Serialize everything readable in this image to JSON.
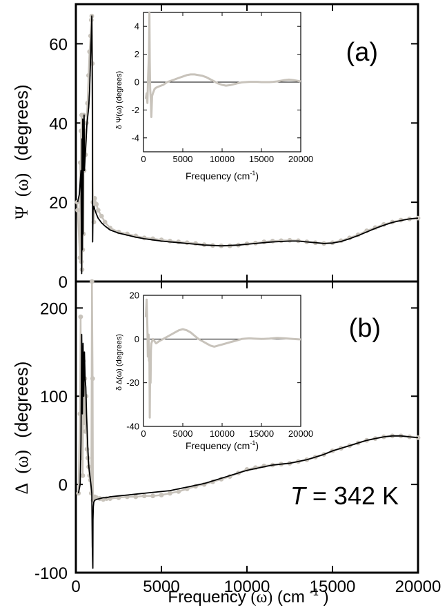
{
  "chart_data": [
    {
      "id": "a",
      "type": "scatter",
      "panel_label": "(a)",
      "ylabel_symbol": "Ψ",
      "ylabel_arg": "(ω)",
      "ylabel_unit": "(degrees)",
      "xlim": [
        0,
        20000
      ],
      "ylim": [
        0,
        70
      ],
      "yticks": [
        0,
        20,
        40,
        60
      ],
      "series": [
        {
          "kind": "measured",
          "color": "#c8c3bb",
          "x": [
            80,
            100,
            240,
            260,
            280,
            300,
            320,
            340,
            360,
            380,
            400,
            420,
            440,
            460,
            480,
            500,
            560,
            620,
            680,
            740,
            800,
            860,
            900,
            930,
            960,
            1000,
            1050,
            1100,
            1200,
            1300,
            1500,
            1700,
            2000,
            2500,
            3000,
            3500,
            4000,
            4500,
            5000,
            5500,
            6000,
            6500,
            7000,
            7500,
            8000,
            8500,
            9000,
            9500,
            10000,
            10500,
            11000,
            11500,
            12000,
            12500,
            13000,
            13500,
            14000,
            14500,
            15000,
            15500,
            16000,
            16500,
            17000,
            17500,
            18000,
            18500,
            19000,
            19500,
            20000
          ],
          "y": [
            20,
            18,
            6,
            30,
            10,
            38,
            5,
            42,
            3,
            40,
            8,
            35,
            12,
            42,
            28,
            38,
            32,
            40,
            45,
            52,
            58,
            62,
            66,
            67,
            55,
            20,
            15,
            21,
            19.5,
            18,
            16.5,
            15,
            13.5,
            12.5,
            12,
            11.5,
            11,
            10.8,
            10.5,
            10.2,
            10,
            9.8,
            9.6,
            9.3,
            9.1,
            9.0,
            9.0,
            9.2,
            9.5,
            9.7,
            10.0,
            10.2,
            10.3,
            10.4,
            10.3,
            10.0,
            9.8,
            9.6,
            9.8,
            10.3,
            11.0,
            11.8,
            12.8,
            13.6,
            14.4,
            15.0,
            15.5,
            15.8,
            16.0
          ]
        },
        {
          "kind": "fit",
          "color": "#000000",
          "x": [
            100,
            200,
            300,
            340,
            360,
            380,
            400,
            420,
            440,
            460,
            480,
            500,
            550,
            600,
            650,
            700,
            750,
            800,
            850,
            900,
            930,
            960,
            980,
            1000,
            1050,
            1100,
            1200,
            1300,
            1500,
            1700,
            2000,
            2500,
            3000,
            3500,
            4000,
            4500,
            5000,
            5500,
            6000,
            6500,
            7000,
            7500,
            8000,
            8500,
            9000,
            9500,
            10000,
            10500,
            11000,
            11500,
            12000,
            12500,
            13000,
            13500,
            14000,
            14500,
            15000,
            15500,
            16000,
            16500,
            17000,
            17500,
            18000,
            18500,
            19000,
            19500,
            20000
          ],
          "y": [
            20,
            22,
            28,
            2,
            36,
            8,
            41,
            12,
            38,
            30,
            42,
            28,
            32,
            36,
            40,
            42,
            44,
            48,
            55,
            62,
            67,
            50,
            10,
            18,
            19,
            18.2,
            17,
            16,
            14.8,
            14,
            13,
            12.2,
            11.7,
            11.2,
            10.8,
            10.5,
            10.2,
            10.0,
            9.8,
            9.6,
            9.4,
            9.2,
            9.1,
            9.0,
            9.1,
            9.2,
            9.4,
            9.6,
            9.8,
            10.0,
            10.1,
            10.2,
            10.2,
            10.0,
            9.8,
            9.6,
            9.7,
            10.1,
            10.8,
            11.6,
            12.5,
            13.4,
            14.2,
            14.9,
            15.4,
            15.8,
            16.0
          ]
        }
      ],
      "inset": {
        "ylabel": "δ Ψ(ω)  (degrees)",
        "xlabel": "Frequency  (cm",
        "xlabel_sup": "-1",
        "xlabel_end": ")",
        "xlim": [
          0,
          20000
        ],
        "ylim": [
          -5,
          5
        ],
        "xticks": [
          0,
          5000,
          10000,
          15000,
          20000
        ],
        "yticks": [
          -4,
          -2,
          0,
          2,
          4
        ],
        "series": [
          {
            "color": "#c8c3bb",
            "x": [
              300,
              400,
              500,
              600,
              700,
              750,
              800,
              850,
              900,
              950,
              1000,
              1100,
              1200,
              1400,
              1600,
              2000,
              2500,
              3000,
              3500,
              4000,
              4500,
              5000,
              5500,
              6000,
              6500,
              7000,
              7500,
              8000,
              8500,
              9000,
              9500,
              10000,
              10500,
              11000,
              11500,
              12000,
              12500,
              13000,
              13500,
              14000,
              14500,
              15000,
              15500,
              16000,
              16500,
              17000,
              17500,
              18000,
              18500,
              19000,
              19500,
              20000
            ],
            "y": [
              -1.2,
              -0.8,
              -1.5,
              0.5,
              2.0,
              5.0,
              1.5,
              -0.5,
              -1.0,
              -1.5,
              -2.5,
              -1.0,
              -0.8,
              -0.5,
              -0.4,
              -0.3,
              -0.2,
              0.0,
              0.1,
              0.2,
              0.3,
              0.4,
              0.5,
              0.55,
              0.55,
              0.5,
              0.45,
              0.35,
              0.2,
              0.05,
              -0.1,
              -0.2,
              -0.25,
              -0.22,
              -0.15,
              -0.08,
              -0.02,
              0.0,
              0.02,
              0.02,
              0.02,
              0.0,
              0.0,
              0.0,
              0.02,
              0.05,
              0.1,
              0.15,
              0.18,
              0.15,
              0.1,
              0.05
            ]
          }
        ]
      }
    },
    {
      "id": "b",
      "type": "scatter",
      "panel_label": "(b)",
      "ylabel_symbol": "Δ",
      "ylabel_arg": "(ω)",
      "ylabel_unit": "(degrees)",
      "annotation_T": "T",
      "annotation_rest": " = 342 K",
      "xlim": [
        0,
        20000
      ],
      "ylim": [
        -100,
        230
      ],
      "yticks": [
        -100,
        0,
        100,
        200
      ],
      "xticks": [
        0,
        5000,
        10000,
        15000,
        20000
      ],
      "xlabel": "Frequency ",
      "xlabel_arg": "(ω)",
      "xlabel_unit": "  (cm",
      "xlabel_sup": "-1",
      "xlabel_end": ")",
      "series": [
        {
          "kind": "measured",
          "color": "#c8c3bb",
          "x": [
            150,
            240,
            280,
            320,
            360,
            400,
            440,
            480,
            520,
            560,
            600,
            650,
            700,
            750,
            800,
            850,
            900,
            940,
            980,
            1000,
            1050,
            1100,
            1200,
            1400,
            1600,
            1800,
            2000,
            2500,
            3000,
            3500,
            4000,
            4500,
            5000,
            5500,
            6000,
            6500,
            7000,
            7500,
            8000,
            8500,
            9000,
            9500,
            10000,
            10500,
            11000,
            11500,
            12000,
            12500,
            13000,
            13500,
            14000,
            14500,
            15000,
            15500,
            16000,
            16500,
            17000,
            17500,
            18000,
            18500,
            19000,
            19500,
            20000
          ],
          "y": [
            -10,
            80,
            190,
            30,
            150,
            10,
            140,
            70,
            120,
            60,
            100,
            40,
            30,
            20,
            10,
            5,
            -10,
            230,
            120,
            -18,
            -15,
            -14,
            -15,
            -16,
            -17,
            -16,
            -16,
            -15,
            -14,
            -14,
            -13,
            -13,
            -12,
            -10,
            -8,
            -5,
            -2,
            0,
            3,
            6,
            9,
            13,
            17,
            19,
            21,
            22,
            23,
            24,
            26,
            28,
            31,
            34,
            38,
            41,
            44,
            47,
            50,
            52,
            54,
            55,
            55,
            54,
            53
          ]
        },
        {
          "kind": "fit",
          "color": "#000000",
          "x": [
            150,
            250,
            300,
            340,
            380,
            420,
            460,
            500,
            540,
            580,
            620,
            660,
            700,
            760,
            820,
            880,
            930,
            960,
            990,
            1000,
            1020,
            1050,
            1100,
            1200,
            1400,
            1600,
            1800,
            2000,
            2500,
            3000,
            3500,
            4000,
            4500,
            5000,
            5500,
            6000,
            6500,
            7000,
            7500,
            8000,
            8500,
            9000,
            9500,
            10000,
            10500,
            11000,
            11500,
            12000,
            12500,
            13000,
            13500,
            14000,
            14500,
            15000,
            15500,
            16000,
            16500,
            17000,
            17500,
            18000,
            18500,
            19000,
            19500,
            20000
          ],
          "y": [
            -10,
            0,
            50,
            170,
            80,
            160,
            100,
            150,
            120,
            110,
            80,
            60,
            40,
            20,
            10,
            0,
            -10,
            -70,
            -95,
            -40,
            -25,
            -20,
            -18,
            -17,
            -16,
            -15,
            -15,
            -14,
            -13,
            -12,
            -11,
            -10,
            -9,
            -8,
            -7,
            -5,
            -3,
            -1,
            1,
            4,
            7,
            10,
            13,
            16,
            18,
            20,
            22,
            23,
            24,
            26,
            28,
            31,
            34,
            38,
            41,
            44,
            47,
            50,
            52,
            54,
            55,
            55,
            54,
            53
          ]
        }
      ],
      "inset": {
        "ylabel": "δ Δ(ω)  (degrees)",
        "xlabel": "Frequency  (cm",
        "xlabel_sup": "-1",
        "xlabel_end": ")",
        "xlim": [
          0,
          20000
        ],
        "ylim": [
          -40,
          20
        ],
        "xticks": [
          0,
          5000,
          10000,
          15000,
          20000
        ],
        "yticks": [
          -40,
          -20,
          0,
          20
        ],
        "series": [
          {
            "color": "#c8c3bb",
            "x": [
              300,
              400,
              500,
              550,
              600,
              650,
              700,
              750,
              800,
              850,
              900,
              950,
              1000,
              1100,
              1200,
              1400,
              1600,
              2000,
              2500,
              3000,
              3500,
              4000,
              4500,
              5000,
              5500,
              6000,
              6500,
              7000,
              7500,
              8000,
              8500,
              9000,
              9500,
              10000,
              10500,
              11000,
              11500,
              12000,
              12500,
              13000,
              13500,
              14000,
              15000,
              16000,
              17000,
              18000,
              19000,
              20000
            ],
            "y": [
              10,
              18,
              5,
              -8,
              -5,
              2,
              -10,
              -6,
              -36,
              -10,
              -20,
              -5,
              -2,
              -1,
              0,
              -1,
              -2,
              -1,
              0,
              1,
              2,
              3,
              4,
              4.5,
              4,
              3,
              1.5,
              0,
              -1,
              -2,
              -3,
              -3.5,
              -3,
              -2.5,
              -2,
              -1.5,
              -1,
              -0.5,
              0,
              0.2,
              0.3,
              0.2,
              0,
              0.2,
              0.5,
              0.3,
              0,
              -0.2
            ]
          }
        ]
      }
    }
  ]
}
